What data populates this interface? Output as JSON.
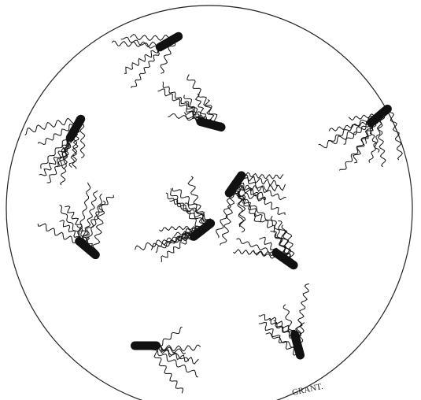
{
  "signature": "GRANT."
}
